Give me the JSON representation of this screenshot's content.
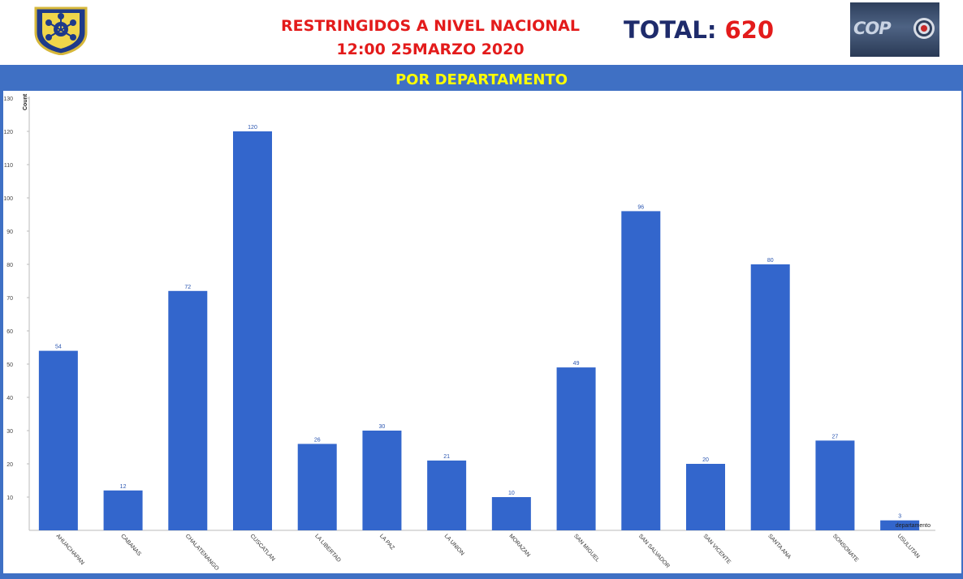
{
  "header": {
    "title_line1": "RESTRINGIDOS A NIVEL NACIONAL",
    "title_line2": "12:00 25MARZO 2020",
    "total_label": "TOTAL:",
    "total_value": "620",
    "logo_text": "COP"
  },
  "banner": "POR DEPARTAMENTO",
  "colors": {
    "bar": "#3366cc",
    "frame": "#3f70c4",
    "title": "#e31b1b",
    "banner_text": "#ffff00",
    "total_label": "#1e2b6b"
  },
  "chart_data": {
    "type": "bar",
    "title": "",
    "ylabel": "Count",
    "xlabel": "departamento",
    "ylim": [
      0,
      130
    ],
    "yticks": [
      10,
      20,
      30,
      40,
      50,
      60,
      70,
      80,
      90,
      100,
      110,
      120,
      130
    ],
    "grid": false,
    "categories": [
      "AHUACHAPAN",
      "CABANAS",
      "CHALATENANGO",
      "CUSCATLAN",
      "LA LIBERTAD",
      "LA PAZ",
      "LA UNION",
      "MORAZAN",
      "SAN MIGUEL",
      "SAN SALVADOR",
      "SAN VICENTE",
      "SANTA ANA",
      "SONSONATE",
      "USULUTAN"
    ],
    "values": [
      54,
      12,
      72,
      120,
      26,
      30,
      21,
      10,
      49,
      96,
      20,
      80,
      27,
      3
    ]
  }
}
